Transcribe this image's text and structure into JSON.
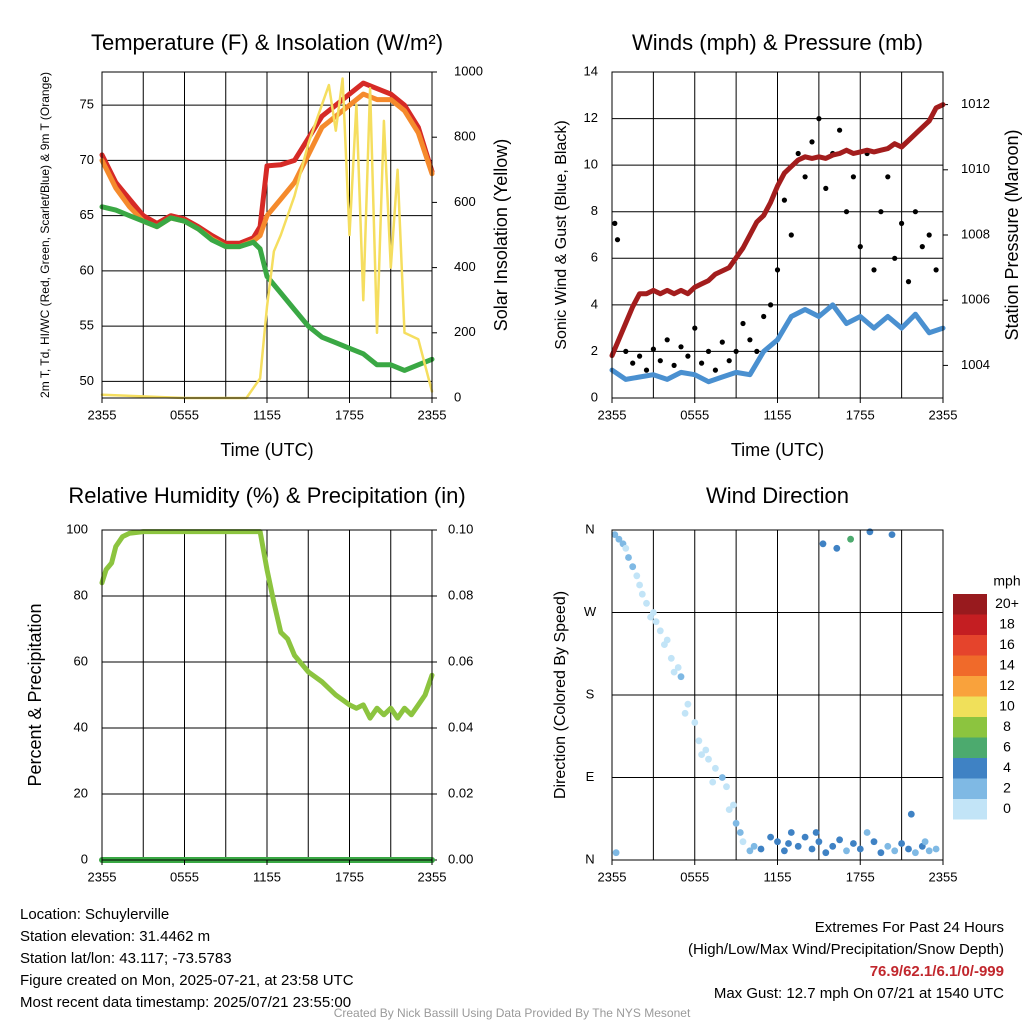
{
  "chart_data": [
    {
      "type": "line",
      "title": "Temperature (F) & Insolation (W/m²)",
      "xlabel": "Time (UTC)",
      "ylabel_left": "2m T, Td, HI/WC (Red, Green, Scarlet/Blue) & 9m T (Orange)",
      "ylabel_right": "Solar Insolation (Yellow)",
      "x_ticks": [
        "2355",
        "0555",
        "1155",
        "1755",
        "2355"
      ],
      "ylim_left": [
        48.5,
        78
      ],
      "ylim_right": [
        0,
        1000
      ],
      "yticks_left": [
        50,
        55,
        60,
        65,
        70,
        75
      ],
      "yticks_right": [
        0,
        200,
        400,
        600,
        800,
        1000
      ],
      "grid": true,
      "series": [
        {
          "name": "2m T (Red)",
          "axis": "left",
          "color": "#d62a26",
          "x": [
            0,
            1,
            2,
            3,
            4,
            5,
            6,
            7,
            8,
            9,
            10,
            11,
            11.5,
            12,
            13,
            14,
            15,
            16,
            17,
            18,
            19,
            20,
            21,
            22,
            23,
            24
          ],
          "y": [
            70.5,
            68,
            66.5,
            65,
            64.3,
            65,
            64.7,
            64,
            63.2,
            62.5,
            62.5,
            63,
            64,
            69.5,
            69.6,
            70,
            72,
            74,
            75,
            76,
            77,
            76.5,
            76,
            75,
            73,
            69
          ]
        },
        {
          "name": "9m T (Orange)",
          "axis": "left",
          "color": "#f58a2c",
          "x": [
            0,
            1,
            2,
            3,
            4,
            5,
            6,
            7,
            8,
            9,
            10,
            11,
            11.5,
            12,
            13,
            14,
            15,
            16,
            17,
            18,
            19,
            20,
            21,
            22,
            23,
            24
          ],
          "y": [
            70,
            67.5,
            65.8,
            64.5,
            64,
            64.8,
            64.5,
            63.8,
            62.9,
            62.2,
            62.2,
            62.7,
            63.2,
            65,
            66.5,
            68,
            70.5,
            73,
            74,
            75,
            76,
            75.5,
            75.5,
            74.5,
            72.5,
            68.8
          ]
        },
        {
          "name": "2m Td (Green)",
          "axis": "left",
          "color": "#3aa844",
          "x": [
            0,
            1,
            2,
            3,
            4,
            5,
            6,
            7,
            8,
            9,
            10,
            11,
            11.5,
            12,
            13,
            14,
            15,
            16,
            17,
            18,
            19,
            20,
            21,
            22,
            23,
            24
          ],
          "y": [
            65.8,
            65.5,
            65,
            64.5,
            64,
            64.8,
            64.5,
            63.8,
            62.8,
            62.2,
            62.2,
            62.6,
            62,
            59.5,
            58,
            56.5,
            55,
            54,
            53.5,
            53,
            52.5,
            51.5,
            51.5,
            51,
            51.5,
            52
          ]
        },
        {
          "name": "Solar Insolation (Yellow)",
          "axis": "right",
          "color": "#f5de5f",
          "x": [
            0,
            6,
            10.5,
            11.5,
            12,
            12.5,
            13,
            14,
            15,
            16,
            16.5,
            17,
            17.5,
            18,
            18.5,
            19,
            19.5,
            20,
            20.5,
            21,
            21.5,
            22,
            23,
            24
          ],
          "y": [
            10,
            0,
            0,
            60,
            280,
            450,
            500,
            620,
            780,
            900,
            960,
            820,
            980,
            500,
            900,
            300,
            950,
            200,
            850,
            400,
            700,
            200,
            180,
            20
          ]
        }
      ]
    },
    {
      "type": "line",
      "title": "Winds (mph) & Pressure (mb)",
      "xlabel": "Time (UTC)",
      "ylabel_left": "Sonic Wind & Gust (Blue, Black)",
      "ylabel_right": "Station Pressure (Maroon)",
      "x_ticks": [
        "2355",
        "0555",
        "1155",
        "1755",
        "2355"
      ],
      "ylim_left": [
        0,
        14
      ],
      "ylim_right": [
        1003,
        1013
      ],
      "yticks_left": [
        0,
        2,
        4,
        6,
        8,
        10,
        12,
        14
      ],
      "yticks_right": [
        1004,
        1006,
        1008,
        1010,
        1012
      ],
      "grid": true,
      "series": [
        {
          "name": "Sonic Wind (Blue)",
          "axis": "left",
          "color": "#4a90d0",
          "x": [
            0,
            1,
            2,
            3,
            4,
            5,
            6,
            7,
            8,
            9,
            10,
            11,
            12,
            13,
            14,
            15,
            16,
            17,
            18,
            19,
            20,
            21,
            22,
            23,
            24
          ],
          "y": [
            1.2,
            0.8,
            0.9,
            1.0,
            0.8,
            1.1,
            1.0,
            0.7,
            0.9,
            1.1,
            1.0,
            2.0,
            2.5,
            3.5,
            3.8,
            3.5,
            4.0,
            3.2,
            3.5,
            3.0,
            3.5,
            3.0,
            3.6,
            2.8,
            3.0
          ]
        },
        {
          "name": "Gust (Black)",
          "axis": "left",
          "color": "#000000",
          "x": [
            0.2,
            0.4,
            1,
            1.5,
            2,
            2.5,
            3,
            3.5,
            4,
            4.5,
            5,
            5.5,
            6,
            6.5,
            7,
            7.5,
            8,
            8.5,
            9,
            9.5,
            10,
            10.5,
            11,
            11.5,
            12,
            12.5,
            13,
            13.5,
            14,
            14.5,
            15,
            15.5,
            16,
            16.5,
            17,
            17.5,
            18,
            18.5,
            19,
            19.5,
            20,
            20.5,
            21,
            21.5,
            22,
            22.5,
            23,
            23.5
          ],
          "y": [
            7.5,
            6.8,
            2.0,
            1.5,
            1.8,
            1.2,
            2.1,
            1.6,
            2.5,
            1.4,
            2.2,
            1.8,
            3.0,
            1.5,
            2.0,
            1.2,
            2.4,
            1.6,
            2.0,
            3.2,
            2.5,
            2.0,
            3.5,
            4.0,
            5.5,
            8.5,
            7.0,
            10.5,
            9.5,
            11.0,
            12.0,
            9.0,
            10.5,
            11.5,
            8.0,
            9.5,
            6.5,
            10.5,
            5.5,
            8.0,
            9.5,
            6.0,
            7.5,
            5.0,
            8.0,
            6.5,
            7.0,
            5.5
          ]
        },
        {
          "name": "Station Pressure (Maroon)",
          "axis": "right",
          "color": "#a31d1d",
          "x": [
            0,
            0.5,
            1,
            1.5,
            2,
            2.5,
            3,
            3.5,
            4,
            4.5,
            5,
            5.5,
            6,
            6.5,
            7,
            7.5,
            8,
            8.5,
            9,
            9.5,
            10,
            10.5,
            11,
            11.5,
            12,
            12.5,
            13,
            13.5,
            14,
            14.5,
            15,
            15.5,
            16,
            16.5,
            17,
            17.5,
            18,
            18.5,
            19,
            19.5,
            20,
            20.5,
            21,
            21.5,
            22,
            22.5,
            23,
            23.5,
            24
          ],
          "y": [
            1004.3,
            1004.8,
            1005.3,
            1005.8,
            1006.2,
            1006.2,
            1006.3,
            1006.2,
            1006.3,
            1006.2,
            1006.3,
            1006.2,
            1006.4,
            1006.5,
            1006.6,
            1006.8,
            1006.9,
            1007.0,
            1007.3,
            1007.6,
            1008.0,
            1008.4,
            1008.6,
            1009.0,
            1009.5,
            1009.9,
            1010.1,
            1010.3,
            1010.4,
            1010.35,
            1010.4,
            1010.35,
            1010.45,
            1010.5,
            1010.6,
            1010.5,
            1010.55,
            1010.6,
            1010.55,
            1010.6,
            1010.65,
            1010.8,
            1010.7,
            1010.9,
            1011.1,
            1011.3,
            1011.5,
            1011.9,
            1012.0
          ]
        }
      ]
    },
    {
      "type": "line",
      "title": "Relative Humidity (%) & Precipitation (in)",
      "xlabel": "",
      "ylabel_left": "Percent & Precipitation",
      "ylabel_right": "",
      "x_ticks": [
        "2355",
        "0555",
        "1155",
        "1755",
        "2355"
      ],
      "ylim_left": [
        0,
        100
      ],
      "ylim_right": [
        0,
        0.1
      ],
      "yticks_left": [
        0,
        20,
        40,
        60,
        80,
        100
      ],
      "yticks_right": [
        0.0,
        0.02,
        0.04,
        0.06,
        0.08,
        0.1
      ],
      "ytick_labels_right": [
        "0.00",
        "0.02",
        "0.04",
        "0.06",
        "0.08",
        "0.10"
      ],
      "grid": true,
      "series": [
        {
          "name": "Relative Humidity",
          "axis": "left",
          "color": "#8cc43f",
          "x": [
            0,
            0.3,
            0.7,
            1,
            1.5,
            2,
            3,
            4,
            5,
            6,
            7,
            8,
            9,
            10,
            11,
            11.5,
            12,
            12.5,
            13,
            13.5,
            14,
            15,
            16,
            17,
            18,
            18.5,
            19,
            19.5,
            20,
            20.5,
            21,
            21.5,
            22,
            22.5,
            23,
            23.5,
            24
          ],
          "y": [
            84,
            88,
            90,
            95,
            98,
            99,
            99.5,
            99.5,
            99.5,
            99.5,
            99.5,
            99.5,
            99.5,
            99.5,
            99.5,
            99.5,
            88,
            78,
            69,
            67,
            62,
            57,
            54,
            50,
            47,
            46,
            47,
            43,
            46,
            44,
            46,
            43,
            46,
            44,
            47,
            50,
            56
          ]
        },
        {
          "name": "Precipitation",
          "axis": "right",
          "color": "#3aa844",
          "x": [
            0,
            24
          ],
          "y": [
            0,
            0
          ]
        }
      ]
    },
    {
      "type": "scatter",
      "title": "Wind Direction",
      "xlabel": "",
      "ylabel": "Direction (Colored By Speed)",
      "x_ticks": [
        "2355",
        "0555",
        "1155",
        "1755",
        "2355"
      ],
      "y_ticks": [
        "N",
        "E",
        "S",
        "W",
        "N"
      ],
      "ylim": [
        0,
        360
      ],
      "grid": true,
      "colorbar": {
        "title": "mph",
        "labels": [
          "0",
          "2",
          "4",
          "6",
          "8",
          "10",
          "12",
          "14",
          "16",
          "18",
          "20+"
        ],
        "colors": [
          "#c2e4f7",
          "#7fb9e4",
          "#3f82c4",
          "#4caa6e",
          "#8cc43f",
          "#f0e05a",
          "#f9a23c",
          "#f06a2a",
          "#e5442c",
          "#c41e22",
          "#981a1e"
        ]
      },
      "points": {
        "x": [
          0.2,
          0.5,
          0.8,
          1.2,
          1.5,
          2.0,
          2.2,
          2.5,
          3.0,
          3.2,
          3.5,
          4.0,
          4.3,
          4.8,
          5.0,
          5.5,
          6.0,
          6.3,
          6.8,
          7.0,
          7.5,
          8.0,
          8.3,
          8.8,
          9.0,
          9.5,
          10.0,
          10.3,
          10.8,
          11.5,
          12.0,
          12.5,
          13.0,
          13.5,
          14.0,
          14.5,
          15.0,
          15.5,
          16.0,
          16.5,
          17.0,
          17.5,
          18.0,
          18.5,
          19.0,
          19.5,
          20.0,
          20.5,
          21.0,
          21.5,
          22.0,
          22.5,
          23.0,
          23.5,
          1.0,
          1.8,
          2.8,
          3.8,
          4.5,
          5.3,
          6.5,
          7.3,
          8.5,
          9.3,
          15.3,
          16.3,
          17.3,
          18.7,
          20.3,
          21.7,
          22.7,
          0.3,
          12.8,
          14.8
        ],
        "y": [
          355,
          350,
          345,
          330,
          320,
          300,
          290,
          280,
          270,
          260,
          250,
          240,
          220,
          210,
          200,
          170,
          150,
          130,
          120,
          110,
          100,
          90,
          80,
          60,
          40,
          20,
          10,
          15,
          12,
          25,
          20,
          10,
          30,
          15,
          25,
          12,
          20,
          8,
          15,
          22,
          10,
          18,
          12,
          30,
          20,
          8,
          15,
          10,
          18,
          12,
          8,
          15,
          10,
          12,
          340,
          310,
          265,
          235,
          205,
          160,
          115,
          85,
          55,
          30,
          345,
          340,
          350,
          358,
          355,
          50,
          20,
          8,
          18,
          30
        ],
        "speed": [
          1,
          1,
          1,
          1,
          1,
          0.5,
          0.5,
          0.5,
          0.5,
          0.5,
          0.5,
          0.5,
          0.5,
          0.5,
          1,
          0.5,
          0.5,
          0.5,
          0.5,
          0.5,
          0.5,
          1,
          0.5,
          0.5,
          1,
          0.5,
          2,
          2,
          3,
          3,
          3,
          3,
          4,
          3,
          4,
          3,
          4,
          3,
          4,
          3,
          2,
          3,
          3,
          2,
          3,
          3,
          2,
          2,
          3,
          3,
          2,
          3,
          2,
          2,
          0.5,
          0.5,
          0.5,
          0.5,
          0.5,
          0.5,
          0.5,
          0.5,
          0.5,
          1,
          4,
          4,
          5,
          3,
          3,
          4,
          2,
          1,
          3,
          3
        ]
      }
    }
  ],
  "footer_left": {
    "location": "Location: Schuylerville",
    "elevation": "Station elevation: 31.4462 m",
    "latlon": "Station lat/lon: 43.117; -73.5783",
    "created": "Figure created on Mon, 2025-07-21, at 23:58 UTC",
    "recent": "Most recent data timestamp: 2025/07/21 23:55:00"
  },
  "footer_right": {
    "title": "Extremes For Past 24 Hours",
    "subtitle": "(High/Low/Max Wind/Precipitation/Snow Depth)",
    "values": "76.9/62.1/6.1/0/-999",
    "gust": "Max Gust: 12.7 mph On 07/21 at 1540 UTC"
  },
  "credit": "Created By Nick Bassill Using Data Provided By The NYS Mesonet"
}
